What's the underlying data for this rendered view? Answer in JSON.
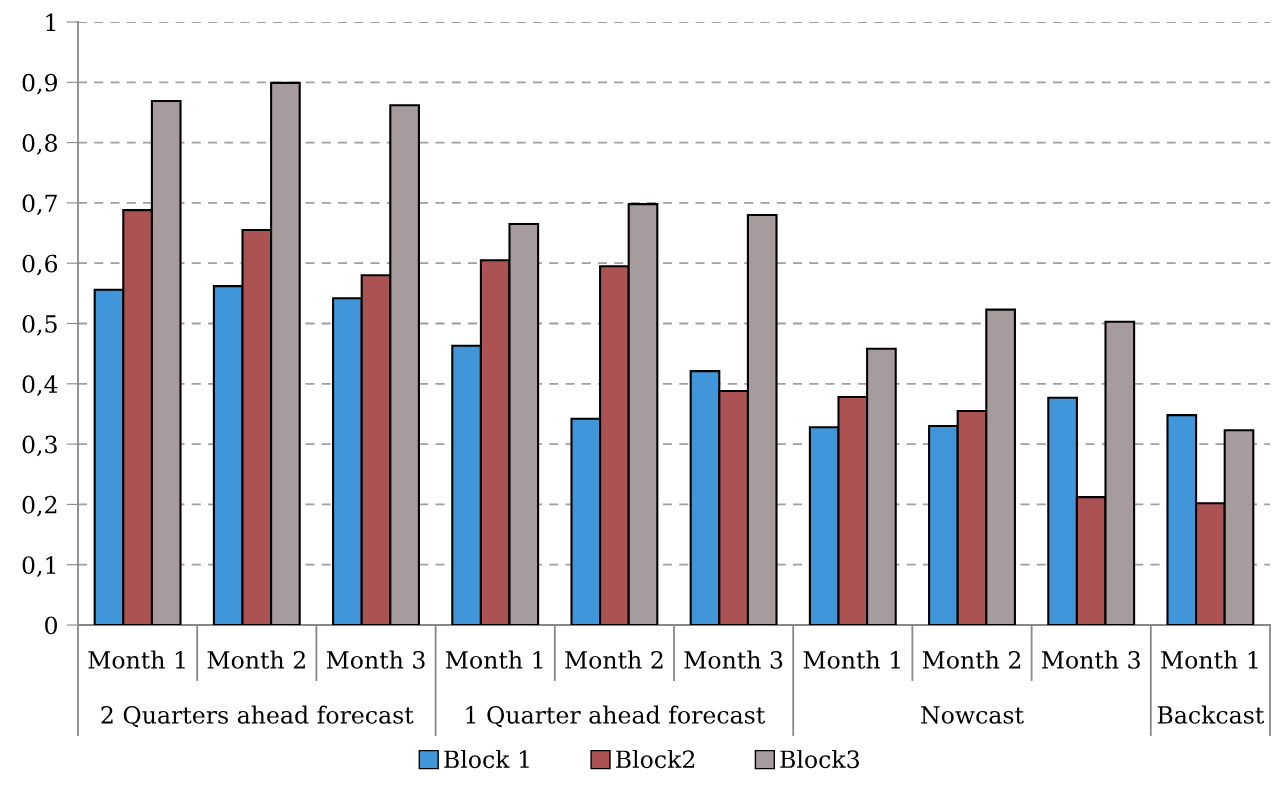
{
  "chart_data": {
    "type": "bar",
    "categories": [
      "Month 1",
      "Month 2",
      "Month 3",
      "Month 1",
      "Month 2",
      "Month 3",
      "Month 1",
      "Month 2",
      "Month 3",
      "Month 1"
    ],
    "series": [
      {
        "name": "Block 1",
        "color": "#4096d9",
        "values": [
          0.556,
          0.562,
          0.542,
          0.463,
          0.342,
          0.421,
          0.328,
          0.33,
          0.377,
          0.348
        ]
      },
      {
        "name": "Block2",
        "color": "#ab5353",
        "values": [
          0.688,
          0.655,
          0.58,
          0.605,
          0.595,
          0.388,
          0.378,
          0.355,
          0.212,
          0.202
        ]
      },
      {
        "name": "Block3",
        "color": "#a69b9d",
        "values": [
          0.869,
          0.899,
          0.862,
          0.665,
          0.698,
          0.68,
          0.458,
          0.523,
          0.503,
          0.323
        ]
      }
    ],
    "annotations": [
      "2 Quarters ahead forecast",
      "1 Quarter ahead forecast",
      "Nowcast",
      "Backcast"
    ],
    "ylim": [
      0,
      1
    ],
    "yticks": [
      {
        "value": 0,
        "label": "0"
      },
      {
        "value": 0.1,
        "label": "0,1"
      },
      {
        "value": 0.2,
        "label": "0,2"
      },
      {
        "value": 0.3,
        "label": "0,3"
      },
      {
        "value": 0.4,
        "label": "0,4"
      },
      {
        "value": 0.5,
        "label": "0,5"
      },
      {
        "value": 0.6,
        "label": "0,6"
      },
      {
        "value": 0.7,
        "label": "0,7"
      },
      {
        "value": 0.8,
        "label": "0,8"
      },
      {
        "value": 0.9,
        "label": "0,9"
      },
      {
        "value": 1,
        "label": "1"
      }
    ],
    "grid": "y",
    "legend": "bottom"
  }
}
